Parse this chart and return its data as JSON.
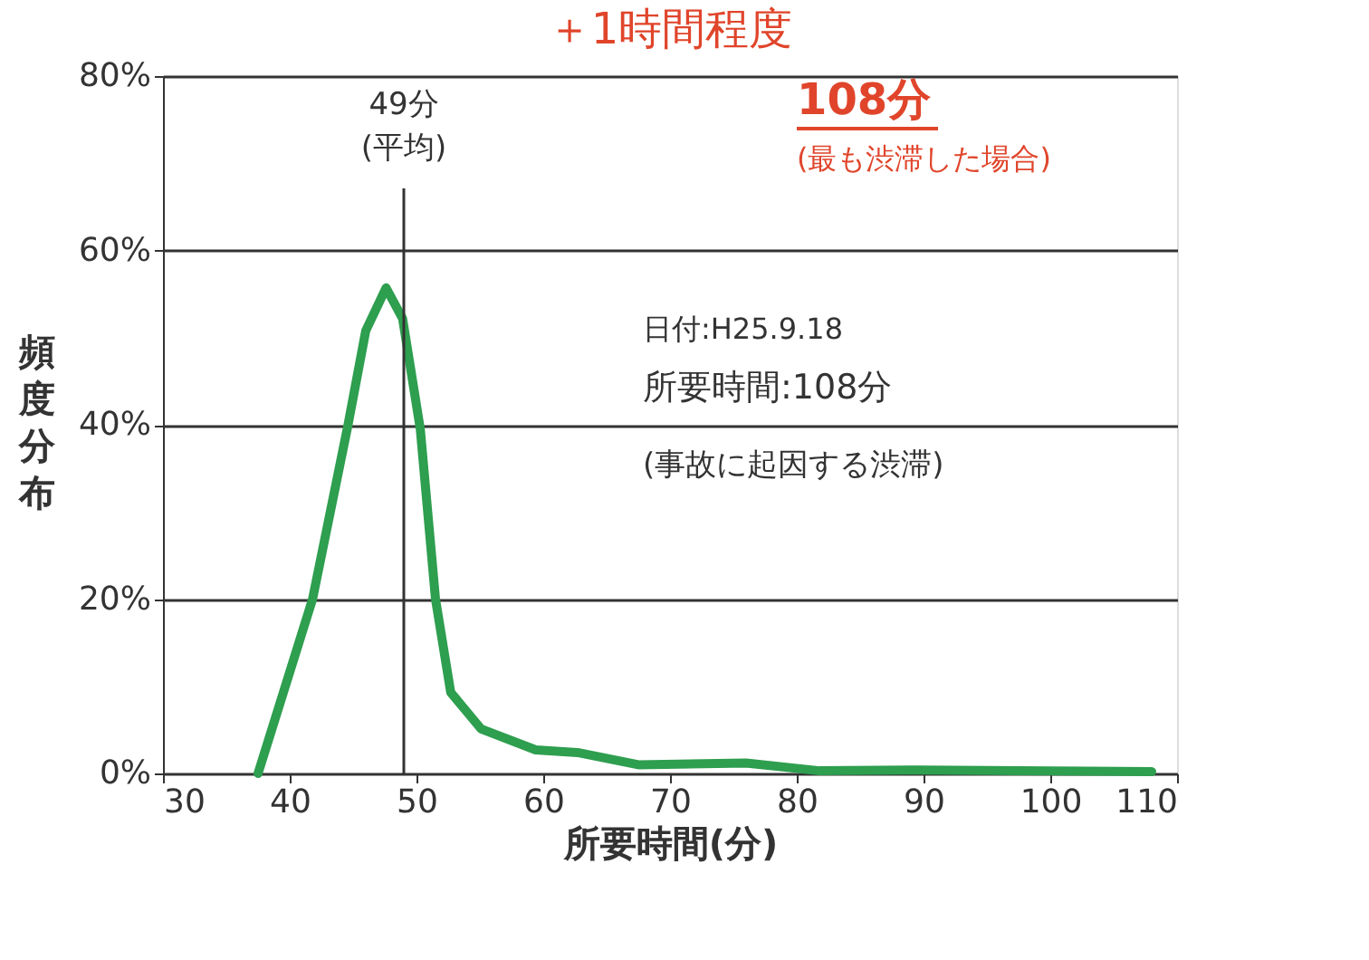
{
  "chart_data": {
    "type": "line",
    "title": "＋1時間程度",
    "xlabel": "所要時間(分)",
    "ylabel": "頻度分布",
    "x": [
      37.5,
      41.8,
      44.6,
      46.0,
      47.6,
      48.9,
      50.3,
      51.5,
      52.7,
      55.1,
      59.4,
      62.7,
      67.5,
      76,
      81.8,
      88.9,
      108
    ],
    "series": [
      {
        "color": "#2e9e4f",
        "values": [
          0,
          20,
          40,
          50.8,
          55.7,
          52.2,
          39.5,
          20,
          9.3,
          5.1,
          2.7,
          2.4,
          1.0,
          1.2,
          0.3,
          0.4,
          0.2
        ]
      }
    ],
    "xlim": [
      30,
      110
    ],
    "xticks": [
      30,
      40,
      50,
      60,
      70,
      80,
      90,
      100,
      110
    ],
    "ylim": [
      0,
      80
    ],
    "yticks": [
      {
        "value": 0,
        "label": "0%"
      },
      {
        "value": 20,
        "label": "20%"
      },
      {
        "value": 40,
        "label": "40%"
      },
      {
        "value": 60,
        "label": "60%"
      },
      {
        "value": 80,
        "label": "80%"
      }
    ],
    "grid": "y",
    "marker": "none",
    "line_style": "solid",
    "ref_lines": [
      {
        "axis": "x",
        "value": 49,
        "label": "49分\n(平均)",
        "color": "#333333"
      }
    ],
    "annotations": [
      "108分",
      "(最も渋滞した場合)",
      "日付:H25.9.18",
      "所要時間:108分",
      "(事故に起因する渋滞)"
    ]
  }
}
